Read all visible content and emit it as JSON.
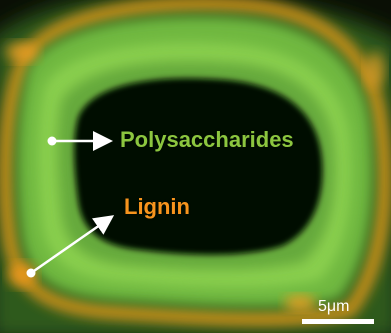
{
  "annotations": {
    "polysaccharides": {
      "label": "Polysaccharides",
      "color": "#8cc63f"
    },
    "lignin": {
      "label": "Lignin",
      "color": "#f7941d"
    }
  },
  "scale_bar": {
    "label": "5μm"
  },
  "colors": {
    "background": "#000000",
    "wall_green": "#7fc24a",
    "wall_dark_green": "#3f7a2a",
    "lignin_orange": "#e8a020",
    "arrow": "#ffffff"
  }
}
